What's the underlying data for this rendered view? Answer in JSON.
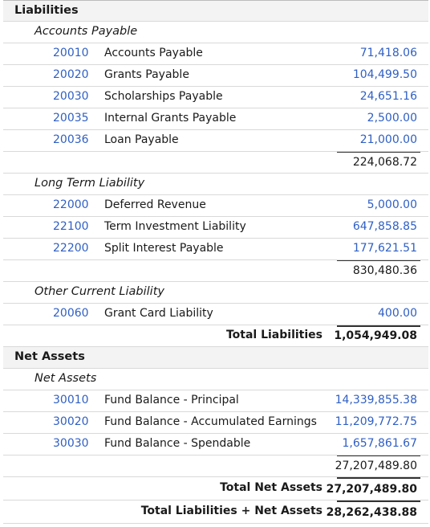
{
  "liabilities": {
    "title": "Liabilities",
    "groups": [
      {
        "name": "Accounts Payable",
        "accounts": [
          {
            "number": "20010",
            "name": "Accounts Payable",
            "amount": "71,418.06"
          },
          {
            "number": "20020",
            "name": "Grants Payable",
            "amount": "104,499.50"
          },
          {
            "number": "20030",
            "name": "Scholarships Payable",
            "amount": "24,651.16"
          },
          {
            "number": "20035",
            "name": "Internal Grants Payable",
            "amount": "2,500.00"
          },
          {
            "number": "20036",
            "name": "Loan Payable",
            "amount": "21,000.00"
          }
        ],
        "subtotal": "224,068.72"
      },
      {
        "name": "Long Term Liability",
        "accounts": [
          {
            "number": "22000",
            "name": "Deferred Revenue",
            "amount": "5,000.00"
          },
          {
            "number": "22100",
            "name": "Term Investment Liability",
            "amount": "647,858.85"
          },
          {
            "number": "22200",
            "name": "Split Interest Payable",
            "amount": "177,621.51"
          }
        ],
        "subtotal": "830,480.36"
      },
      {
        "name": "Other Current Liability",
        "accounts": [
          {
            "number": "20060",
            "name": "Grant Card Liability",
            "amount": "400.00"
          }
        ]
      }
    ],
    "total_label": "Total Liabilities",
    "total": "1,054,949.08"
  },
  "net_assets": {
    "title": "Net Assets",
    "groups": [
      {
        "name": "Net Assets",
        "accounts": [
          {
            "number": "30010",
            "name": "Fund Balance - Principal",
            "amount": "14,339,855.38"
          },
          {
            "number": "30020",
            "name": "Fund Balance - Accumulated Earnings",
            "amount": "11,209,772.75"
          },
          {
            "number": "30030",
            "name": "Fund Balance - Spendable",
            "amount": "1,657,861.67"
          }
        ],
        "subtotal": "27,207,489.80"
      }
    ],
    "total_label": "Total Net Assets",
    "total": "27,207,489.80"
  },
  "grand_total": {
    "label": "Total Liabilities + Net Assets",
    "value": "28,262,438.88"
  },
  "colors": {
    "link": "#2f5fc4",
    "header_bg": "#f3f3f3"
  }
}
